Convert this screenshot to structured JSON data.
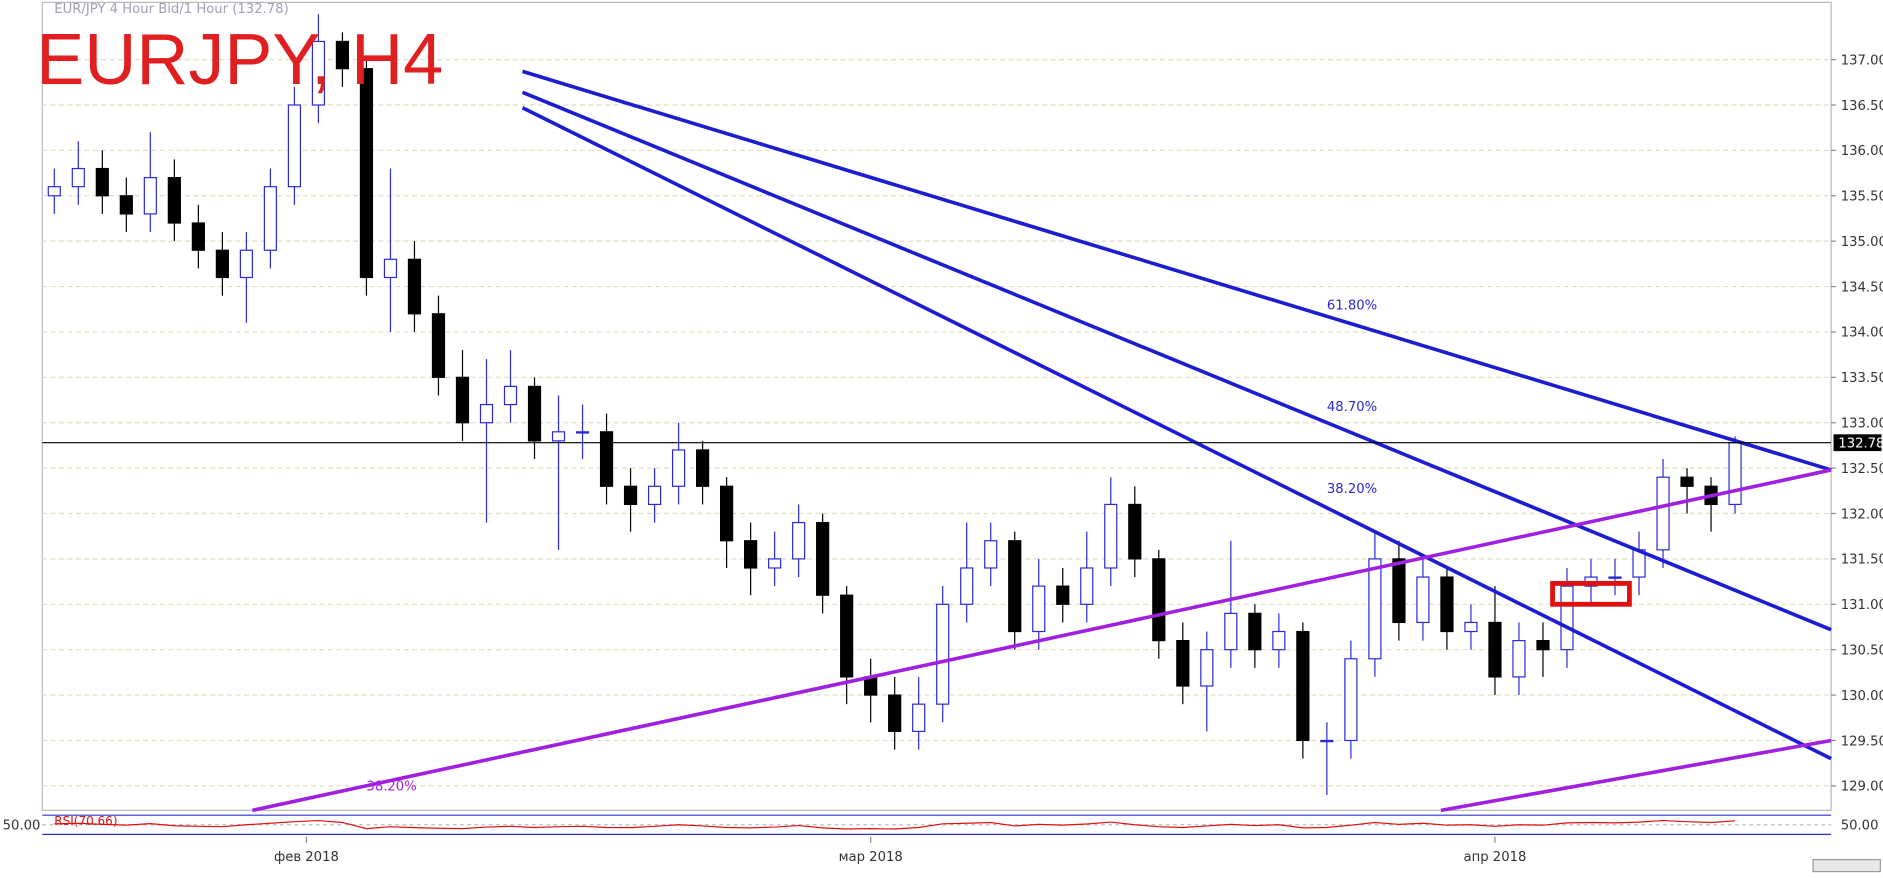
{
  "chart_data": {
    "type": "candlestick",
    "title": "EURJPY, H4",
    "subtitle": "EUR/JPY 4 Hour Bid/1 Hour (132.78)",
    "open": [
      135.5,
      135.6,
      135.8,
      135.5,
      135.3,
      135.7,
      135.2,
      134.9,
      134.6,
      134.9,
      135.6,
      136.5,
      137.2,
      136.9,
      134.6,
      134.8,
      134.2,
      133.5,
      133.0,
      133.2,
      133.4,
      132.8,
      132.9,
      132.9,
      132.3,
      132.1,
      132.3,
      132.7,
      132.3,
      131.7,
      131.4,
      131.5,
      131.9,
      131.1,
      130.2,
      130.0,
      129.6,
      129.9,
      131.0,
      131.4,
      131.7,
      130.7,
      131.2,
      131.0,
      131.4,
      132.1,
      131.5,
      130.6,
      130.1,
      130.5,
      130.9,
      130.5,
      130.7,
      129.5,
      129.5,
      130.4,
      131.5,
      130.8,
      131.3,
      130.7,
      130.8,
      130.2,
      130.6,
      130.5,
      131.2,
      131.3,
      131.3,
      131.6,
      132.4,
      132.3,
      132.1
    ],
    "high": [
      135.8,
      136.1,
      136.0,
      135.7,
      136.2,
      135.9,
      135.4,
      135.1,
      135.1,
      135.8,
      136.7,
      137.5,
      137.3,
      137.0,
      135.8,
      135.0,
      134.4,
      133.8,
      133.7,
      133.8,
      133.5,
      133.3,
      133.2,
      133.1,
      132.5,
      132.5,
      133.0,
      132.8,
      132.4,
      131.9,
      131.8,
      132.1,
      132.0,
      131.2,
      130.4,
      130.2,
      130.2,
      131.2,
      131.9,
      131.9,
      131.8,
      131.5,
      131.4,
      131.8,
      132.4,
      132.3,
      131.6,
      130.8,
      130.7,
      131.7,
      131.0,
      130.9,
      130.8,
      129.7,
      130.6,
      131.8,
      131.7,
      131.5,
      131.4,
      131.0,
      131.2,
      130.8,
      130.8,
      131.4,
      131.5,
      131.5,
      131.8,
      132.6,
      132.5,
      132.4,
      132.85
    ],
    "low": [
      135.3,
      135.4,
      135.3,
      135.1,
      135.1,
      135.0,
      134.7,
      134.4,
      134.1,
      134.7,
      135.4,
      136.3,
      136.7,
      134.4,
      134.0,
      134.0,
      133.3,
      132.8,
      131.9,
      133.0,
      132.6,
      131.6,
      132.6,
      132.1,
      131.8,
      131.9,
      132.1,
      132.1,
      131.4,
      131.1,
      131.2,
      131.3,
      130.9,
      129.9,
      129.7,
      129.4,
      129.4,
      129.7,
      130.8,
      131.2,
      130.5,
      130.5,
      130.8,
      130.8,
      131.2,
      131.3,
      130.4,
      129.9,
      129.6,
      130.3,
      130.3,
      130.3,
      129.3,
      128.9,
      129.3,
      130.2,
      130.6,
      130.6,
      130.5,
      130.5,
      130.0,
      130.0,
      130.2,
      130.3,
      131.0,
      131.1,
      131.1,
      131.4,
      132.0,
      131.8,
      132.0
    ],
    "close": [
      135.6,
      135.8,
      135.5,
      135.3,
      135.7,
      135.2,
      134.9,
      134.6,
      134.9,
      135.6,
      136.5,
      137.2,
      136.9,
      134.6,
      134.8,
      134.2,
      133.5,
      133.0,
      133.2,
      133.4,
      132.8,
      132.9,
      132.9,
      132.3,
      132.1,
      132.3,
      132.7,
      132.3,
      131.7,
      131.4,
      131.5,
      131.9,
      131.1,
      130.2,
      130.0,
      129.6,
      129.9,
      131.0,
      131.4,
      131.7,
      130.7,
      131.2,
      131.0,
      131.4,
      132.1,
      131.5,
      130.6,
      130.1,
      130.5,
      130.9,
      130.5,
      130.7,
      129.5,
      129.5,
      130.4,
      131.5,
      130.8,
      131.3,
      130.7,
      130.8,
      130.2,
      130.6,
      130.5,
      131.2,
      131.3,
      131.3,
      131.6,
      132.4,
      132.3,
      132.1,
      132.78
    ],
    "up_color": "#ffffff",
    "up_border": "#2a2ad8",
    "down_color": "#000000",
    "xlim": [
      -0.5,
      74
    ],
    "xticks": [
      {
        "value": 10.5,
        "label": "фев 2018"
      },
      {
        "value": 34,
        "label": "мар 2018"
      },
      {
        "value": 60,
        "label": "апр 2018"
      }
    ],
    "ylim": [
      128.73,
      137.63
    ],
    "yticks": [
      {
        "value": 129,
        "label": "129.00"
      },
      {
        "value": 129.5,
        "label": "129.50"
      },
      {
        "value": 130,
        "label": "130.00"
      },
      {
        "value": 130.5,
        "label": "130.50"
      },
      {
        "value": 131,
        "label": "131.00"
      },
      {
        "value": 131.5,
        "label": "131.50"
      },
      {
        "value": 132,
        "label": "132.00"
      },
      {
        "value": 132.5,
        "label": "132.50"
      },
      {
        "value": 133,
        "label": "133.00"
      },
      {
        "value": 133.5,
        "label": "133.50"
      },
      {
        "value": 134,
        "label": "134.00"
      },
      {
        "value": 134.5,
        "label": "134.50"
      },
      {
        "value": 135,
        "label": "135.00"
      },
      {
        "value": 135.5,
        "label": "135.50"
      },
      {
        "value": 136,
        "label": "136.00"
      },
      {
        "value": 136.5,
        "label": "136.50"
      },
      {
        "value": 137,
        "label": "137.00"
      }
    ],
    "grid": true,
    "last_price": {
      "value": 132.78,
      "label": "132.78"
    },
    "lines": [
      {
        "color": "#1c1cd0",
        "points": [
          [
            19.5,
            136.87
          ],
          [
            74,
            132.48
          ]
        ]
      },
      {
        "color": "#1c1cd0",
        "points": [
          [
            19.5,
            136.64
          ],
          [
            74,
            130.72
          ]
        ]
      },
      {
        "color": "#1c1cd0",
        "points": [
          [
            19.5,
            136.47
          ],
          [
            74,
            129.3
          ]
        ]
      },
      {
        "color": "#a020e0",
        "points": [
          [
            8.25,
            128.73
          ],
          [
            74,
            132.48
          ]
        ]
      },
      {
        "color": "#a020e0",
        "points": [
          [
            57.75,
            128.73
          ],
          [
            74,
            129.5
          ]
        ]
      }
    ],
    "highlight": {
      "color": "#e01010",
      "x": [
        62.4,
        65.6
      ],
      "y": [
        131.0,
        131.23
      ]
    },
    "annotations": [
      {
        "text": "61.80%",
        "x": 53,
        "y": 134.3,
        "color": "#2a2ad8"
      },
      {
        "text": "48.70%",
        "x": 53,
        "y": 133.18,
        "color": "#2a2ad8"
      },
      {
        "text": "38.20%",
        "x": 53,
        "y": 132.28,
        "color": "#2a2ad8"
      },
      {
        "text": "38.20%",
        "x": 13,
        "y": 129.0,
        "color": "#a020e0"
      }
    ],
    "rsi": {
      "label": "RSI(70.66)",
      "color": "#e01010",
      "ylim": [
        0,
        100
      ],
      "level": {
        "value": 50,
        "label": "50.00"
      },
      "values": [
        55,
        58,
        52,
        48,
        56,
        45,
        42,
        40,
        50,
        58,
        66,
        72,
        62,
        30,
        40,
        35,
        32,
        30,
        38,
        42,
        36,
        40,
        42,
        36,
        35,
        42,
        50,
        44,
        36,
        34,
        38,
        46,
        34,
        28,
        30,
        28,
        36,
        55,
        58,
        62,
        44,
        52,
        48,
        54,
        64,
        50,
        40,
        36,
        44,
        52,
        46,
        50,
        34,
        36,
        48,
        62,
        52,
        58,
        48,
        50,
        42,
        50,
        48,
        60,
        62,
        60,
        64,
        72,
        66,
        62,
        70.66
      ]
    }
  }
}
